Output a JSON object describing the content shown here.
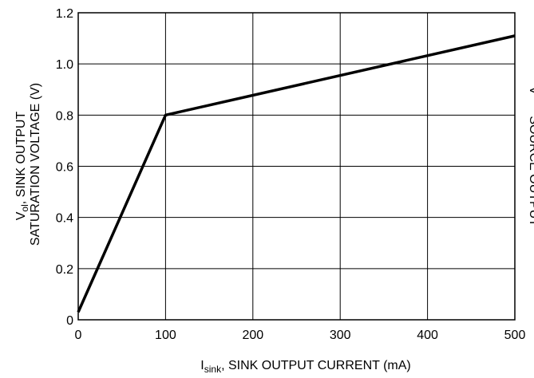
{
  "chart_data": {
    "type": "line",
    "xlabel_main": "I",
    "xlabel_sub": "sink",
    "xlabel_rest": ", SINK OUTPUT CURRENT (mA)",
    "ylabel_main": "V",
    "ylabel_sub": "ol",
    "ylabel_rest": ", SINK OUTPUT",
    "ylabel_line2": "SATURATION VOLTAGE (V)",
    "right_label_clipped": "V      SOURCE OUTPUT",
    "xlim": [
      0,
      500
    ],
    "ylim": [
      0,
      1.2
    ],
    "xticks": [
      0,
      100,
      200,
      300,
      400,
      500
    ],
    "yticks": [
      0,
      0.2,
      0.4,
      0.6,
      0.8,
      1.0,
      1.2
    ],
    "xtick_labels": [
      "0",
      "100",
      "200",
      "300",
      "400",
      "500"
    ],
    "ytick_labels": [
      "0",
      "0.2",
      "0.4",
      "0.6",
      "0.8",
      "1.0",
      "1.2"
    ],
    "grid": true,
    "series": [
      {
        "x": [
          0,
          100,
          500
        ],
        "y": [
          0.03,
          0.8,
          1.11
        ]
      }
    ],
    "colors": {
      "line": "#000000",
      "grid": "#000000",
      "background": "#ffffff"
    }
  }
}
